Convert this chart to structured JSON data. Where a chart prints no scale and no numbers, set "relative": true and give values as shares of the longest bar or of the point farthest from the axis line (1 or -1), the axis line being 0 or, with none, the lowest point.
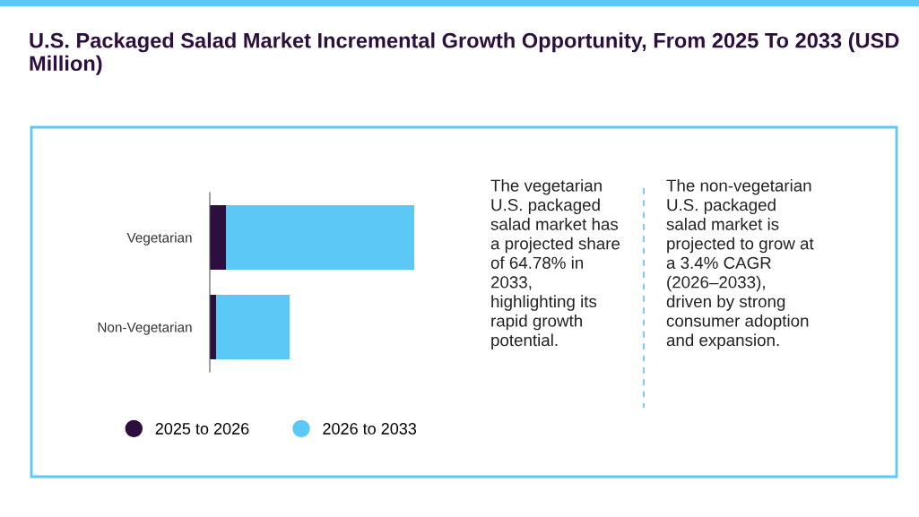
{
  "chart_data": {
    "type": "bar",
    "orientation": "horizontal",
    "stacked": true,
    "relative": true,
    "title": "U.S. Packaged Salad Market Incremental Growth Opportunity, From 2025 To 2033 (USD Million)",
    "categories": [
      "Vegetarian",
      "Non-Vegetarian"
    ],
    "series": [
      {
        "name": "2025 to 2026",
        "color": "#2d0f3f",
        "values": [
          0.079,
          0.031
        ]
      },
      {
        "name": "2026 to 2033",
        "color": "#5bc8f5",
        "values": [
          0.921,
          0.36
        ]
      }
    ],
    "legend": "bottom",
    "annotations": [
      "The vegetarian\nU.S. packaged\nsalad market has\na projected share\nof 64.78% in\n2033,\nhighlighting its\nrapid growth\npotential.",
      "The non-vegetarian\nU.S. packaged\nsalad market is\nprojected to grow at\na 3.4% CAGR\n(2026–2033),\ndriven by strong\nconsumer adoption\nand expansion."
    ]
  }
}
